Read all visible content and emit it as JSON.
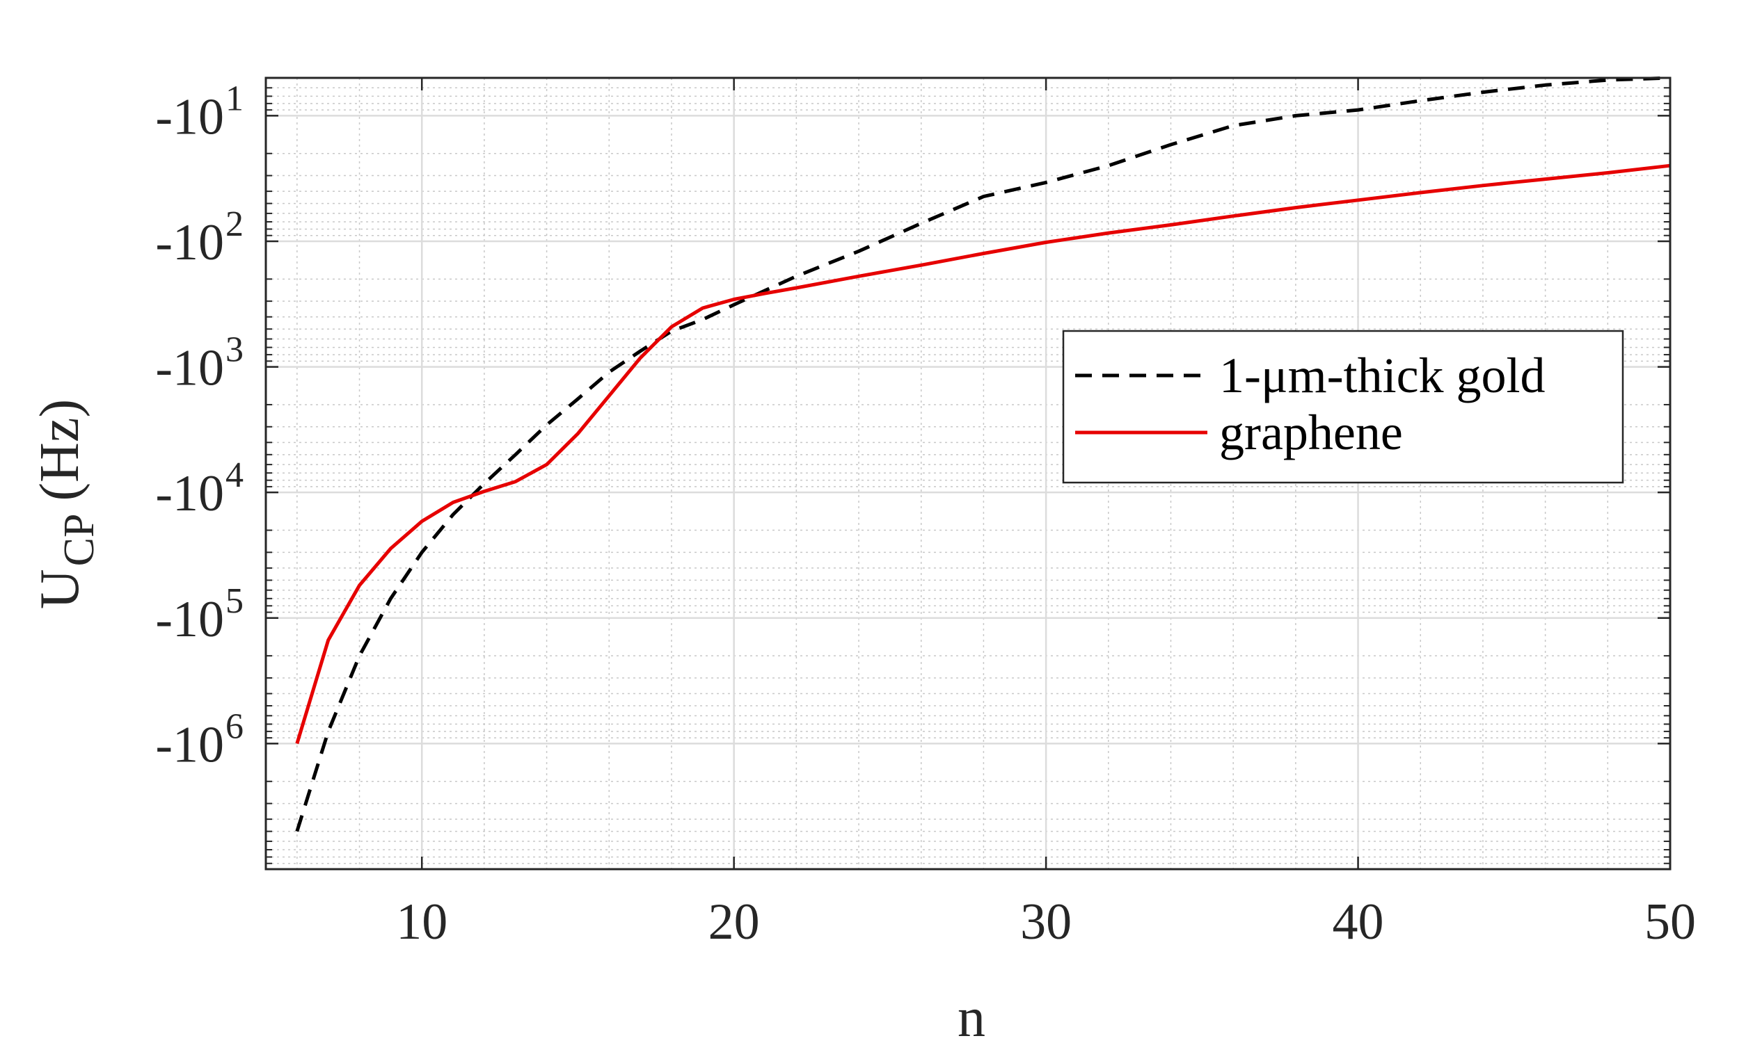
{
  "chart_data": {
    "type": "line",
    "title": "",
    "xlabel": "n",
    "ylabel": {
      "main": "U",
      "subscript": "CP",
      "unit": "(Hz)"
    },
    "xlim": [
      5,
      50
    ],
    "xticks": [
      10,
      20,
      30,
      40,
      50
    ],
    "xtick_labels": [
      "10",
      "20",
      "30",
      "40",
      "50"
    ],
    "ylim_abs": [
      5,
      10000000
    ],
    "y_scale": "log (negative values, magnitude increases downward)",
    "yticks_abs": [
      10,
      100,
      1000,
      10000,
      100000,
      1000000
    ],
    "ytick_labels": [
      {
        "base": "-10",
        "exp": "1"
      },
      {
        "base": "-10",
        "exp": "2"
      },
      {
        "base": "-10",
        "exp": "3"
      },
      {
        "base": "-10",
        "exp": "4"
      },
      {
        "base": "-10",
        "exp": "5"
      },
      {
        "base": "-10",
        "exp": "6"
      }
    ],
    "grid": true,
    "minor_grid": true,
    "legend_position": "right-center",
    "series": [
      {
        "name": "1-μm-thick gold",
        "color": "#000000",
        "style": "dashed",
        "x": [
          6,
          7,
          8,
          9,
          10,
          11,
          12,
          13,
          14,
          15,
          16,
          17,
          18,
          19,
          20,
          22,
          24,
          26,
          28,
          30,
          32,
          34,
          36,
          38,
          40,
          42,
          44,
          46,
          48,
          50
        ],
        "y": [
          -5000000,
          -800000,
          -200000,
          -70000,
          -30000,
          -15000,
          -8500,
          -5000,
          -2900,
          -1800,
          -1100,
          -750,
          -520,
          -420,
          -320,
          -190,
          -120,
          -72,
          -44,
          -34,
          -25,
          -17,
          -12,
          -10,
          -9,
          -7.6,
          -6.5,
          -5.7,
          -5.2,
          -5
        ]
      },
      {
        "name": "graphene",
        "color": "#e60000",
        "style": "solid",
        "x": [
          6,
          7,
          8,
          9,
          10,
          11,
          12,
          13,
          14,
          15,
          16,
          17,
          18,
          19,
          20,
          21,
          22,
          24,
          26,
          28,
          30,
          32,
          34,
          36,
          38,
          40,
          42,
          44,
          46,
          48,
          50
        ],
        "y": [
          -1000000,
          -150000,
          -55000,
          -28000,
          -17000,
          -12000,
          -9800,
          -8200,
          -6000,
          -3400,
          -1700,
          -850,
          -480,
          -340,
          -290,
          -260,
          -235,
          -190,
          -155,
          -125,
          -102,
          -86,
          -74,
          -63,
          -54,
          -47,
          -41,
          -36,
          -32,
          -28.5,
          -25
        ]
      }
    ]
  }
}
